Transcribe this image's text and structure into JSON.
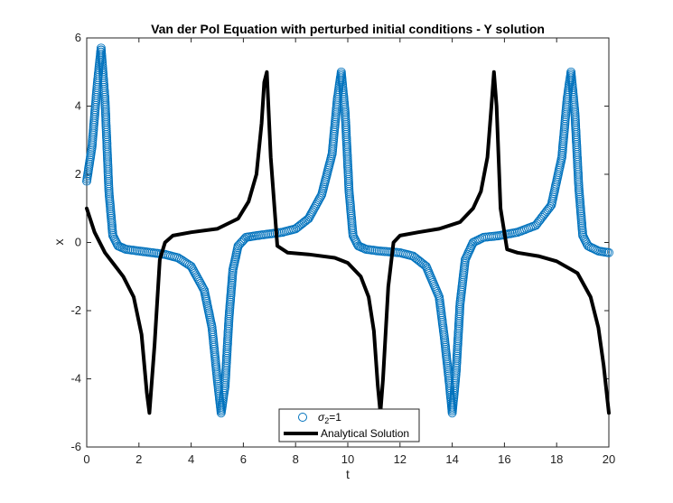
{
  "chart_data": {
    "type": "line",
    "title": "Van der Pol Equation with perturbed initial conditions - Y solution",
    "xlabel": "t",
    "ylabel": "x",
    "xlim": [
      0,
      20
    ],
    "ylim": [
      -6,
      6
    ],
    "xticks": [
      "0",
      "2",
      "4",
      "6",
      "8",
      "10",
      "12",
      "14",
      "16",
      "18",
      "20"
    ],
    "yticks": [
      "-6",
      "-4",
      "-2",
      "0",
      "2",
      "4",
      "6"
    ],
    "grid": false,
    "legend_position": "bottom-center",
    "series": [
      {
        "name_main": "σ",
        "name_sub": "2",
        "name_tail": "=1",
        "style": "circle-markers",
        "color": "#0072BD",
        "x": [
          0,
          0.2,
          0.4,
          0.55,
          0.7,
          0.85,
          1.0,
          1.2,
          1.5,
          2.0,
          2.5,
          3.0,
          3.5,
          4.0,
          4.5,
          4.8,
          5.0,
          5.15,
          5.3,
          5.45,
          5.6,
          5.8,
          6.1,
          6.5,
          7.0,
          7.5,
          8.0,
          8.5,
          9.0,
          9.4,
          9.6,
          9.75,
          9.9,
          10.05,
          10.2,
          10.4,
          10.7,
          11.2,
          12.0,
          12.5,
          13.0,
          13.5,
          13.7,
          13.9,
          14.0,
          14.15,
          14.3,
          14.5,
          14.8,
          15.2,
          15.8,
          16.5,
          17.2,
          17.8,
          18.2,
          18.4,
          18.55,
          18.7,
          18.85,
          19.0,
          19.2,
          19.6,
          20.0
        ],
        "y": [
          1.8,
          2.8,
          4.6,
          5.7,
          4.2,
          1.5,
          0.2,
          -0.1,
          -0.2,
          -0.25,
          -0.3,
          -0.35,
          -0.45,
          -0.7,
          -1.4,
          -2.5,
          -4.0,
          -5.0,
          -4.2,
          -2.2,
          -0.8,
          -0.1,
          0.15,
          0.2,
          0.25,
          0.3,
          0.4,
          0.7,
          1.4,
          2.6,
          4.2,
          5.0,
          3.8,
          1.5,
          0.2,
          -0.1,
          -0.2,
          -0.25,
          -0.3,
          -0.4,
          -0.7,
          -1.6,
          -2.8,
          -4.2,
          -5.0,
          -3.8,
          -1.8,
          -0.5,
          0.0,
          0.15,
          0.2,
          0.3,
          0.5,
          1.1,
          2.5,
          4.2,
          5.0,
          3.8,
          1.6,
          0.2,
          -0.1,
          -0.25,
          -0.3
        ]
      },
      {
        "name": "Analytical Solution",
        "style": "solid-thick",
        "color": "#000000",
        "x": [
          0,
          0.3,
          0.7,
          1.0,
          1.4,
          1.8,
          2.1,
          2.3,
          2.4,
          2.6,
          2.8,
          3.0,
          3.3,
          4.0,
          5.0,
          5.8,
          6.2,
          6.5,
          6.7,
          6.8,
          6.9,
          7.05,
          7.3,
          7.7,
          8.5,
          9.5,
          10.0,
          10.5,
          10.8,
          11.0,
          11.15,
          11.25,
          11.35,
          11.55,
          11.75,
          12.0,
          12.7,
          13.5,
          14.3,
          14.8,
          15.1,
          15.35,
          15.5,
          15.6,
          15.7,
          15.85,
          16.1,
          16.5,
          17.3,
          18.0,
          18.8,
          19.3,
          19.6,
          19.8,
          20.0
        ],
        "y": [
          1.0,
          0.3,
          -0.3,
          -0.6,
          -1.0,
          -1.6,
          -2.7,
          -4.4,
          -5.0,
          -3.0,
          -0.5,
          0.0,
          0.2,
          0.3,
          0.4,
          0.7,
          1.2,
          2.0,
          3.5,
          4.7,
          5.0,
          2.5,
          -0.1,
          -0.3,
          -0.35,
          -0.45,
          -0.6,
          -1.0,
          -1.6,
          -2.6,
          -4.2,
          -5.0,
          -4.0,
          -1.3,
          0.0,
          0.2,
          0.3,
          0.4,
          0.6,
          1.0,
          1.5,
          2.5,
          4.0,
          5.0,
          4.0,
          1.0,
          -0.2,
          -0.3,
          -0.4,
          -0.55,
          -0.9,
          -1.6,
          -2.5,
          -3.6,
          -5.0
        ]
      }
    ]
  }
}
